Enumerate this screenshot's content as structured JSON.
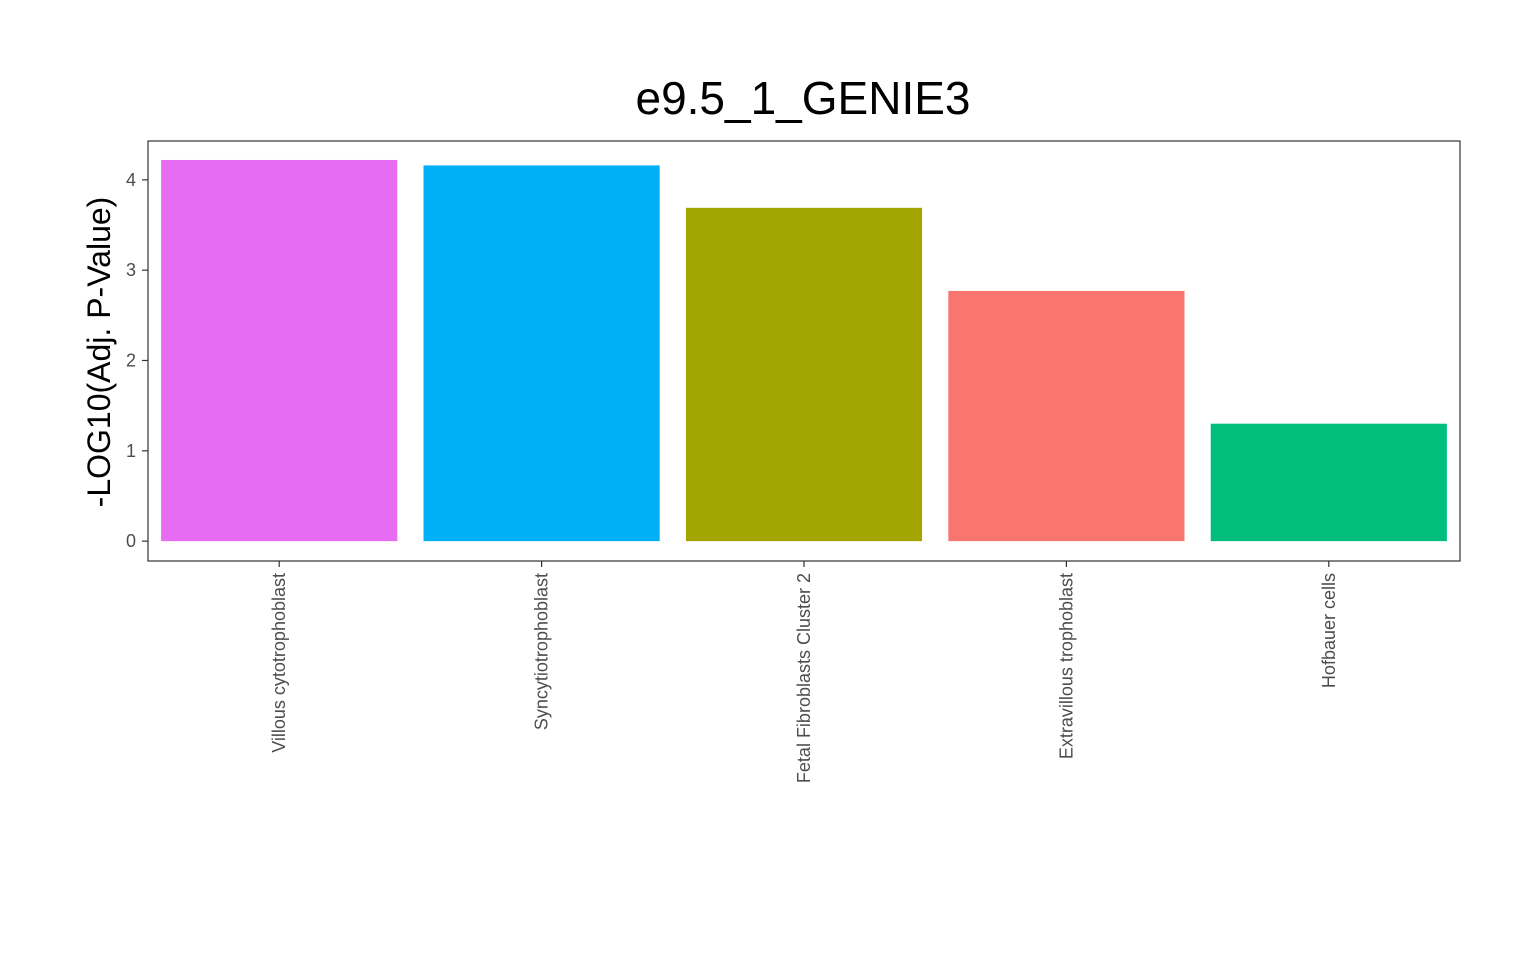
{
  "chart_data": {
    "type": "bar",
    "title": "e9.5_1_GENIE3",
    "xlabel": "",
    "ylabel": "-LOG10(Adj. P-Value)",
    "categories": [
      "Villous cytotrophoblast",
      "Syncytiotrophoblast",
      "Fetal Fibroblasts Cluster 2",
      "Extravillous trophoblast",
      "Hofbauer cells"
    ],
    "values": [
      4.22,
      4.16,
      3.69,
      2.77,
      1.3
    ],
    "colors": [
      "#E76BF3",
      "#00B0F6",
      "#A3A500",
      "#F8766D",
      "#00BF7D"
    ],
    "ylim": [
      -0.22,
      4.43
    ],
    "yticks": [
      0,
      1,
      2,
      3,
      4
    ],
    "grid": false,
    "legend": "none",
    "panel_border": true
  }
}
